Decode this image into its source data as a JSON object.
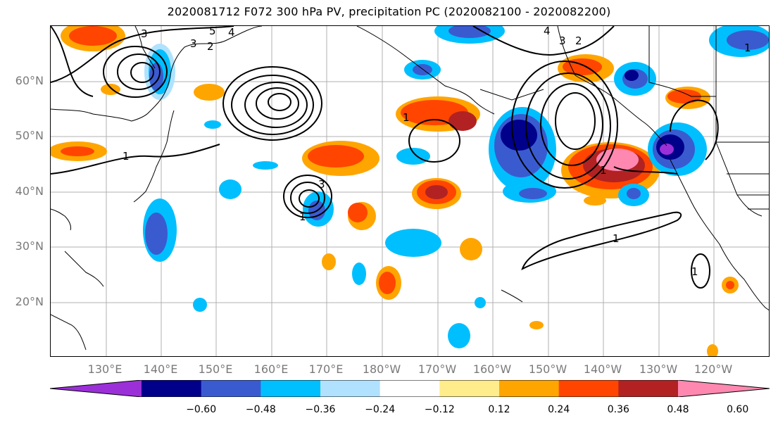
{
  "title": "2020081712 F072 300 hPa PV, precipitation PC (2020082100 - 2020082200)",
  "lat_labels": [
    "60°N",
    "50°N",
    "40°N",
    "30°N",
    "20°N"
  ],
  "lon_labels": [
    "130°E",
    "140°E",
    "150°E",
    "160°E",
    "170°E",
    "180°W",
    "170°W",
    "160°W",
    "150°W",
    "140°W",
    "130°W",
    "120°W"
  ],
  "contour_labels": [
    "3",
    "5",
    "4",
    "3",
    "2",
    "1",
    "1",
    "3",
    "1",
    "4",
    "3",
    "2",
    "1",
    "1",
    "1",
    "1"
  ],
  "colorbar": {
    "ticks": [
      "−0.60",
      "−0.48",
      "−0.36",
      "−0.24",
      "−0.12",
      "0.12",
      "0.24",
      "0.36",
      "0.48",
      "0.60"
    ],
    "colors": [
      "#9b30d9",
      "#00008b",
      "#3a5bd0",
      "#00bfff",
      "#b0e2ff",
      "#ffffff",
      "#ffec8b",
      "#ffa500",
      "#ff4500",
      "#b22222",
      "#ff88b0"
    ]
  }
}
